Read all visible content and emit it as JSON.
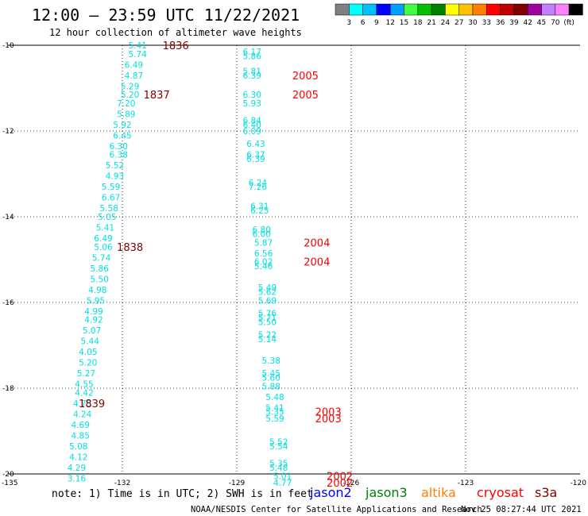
{
  "header": {
    "title": "12:00 – 23:59 UTC 11/22/2021",
    "subtitle": "12 hour collection of altimeter wave heights"
  },
  "legend": {
    "colors": [
      "#808080",
      "#00ffff",
      "#00c0ff",
      "#0000ff",
      "#00a0ff",
      "#40ff40",
      "#00c000",
      "#008000",
      "#ffff00",
      "#ffc000",
      "#ff8000",
      "#ff0000",
      "#c00000",
      "#800000",
      "#a000a0",
      "#c080ff",
      "#ff80ff",
      "#000000"
    ],
    "labels": [
      "3",
      "6",
      "9",
      "12",
      "15",
      "18",
      "21",
      "24",
      "27",
      "30",
      "33",
      "36",
      "39",
      "42",
      "45",
      "70",
      "(ft)"
    ]
  },
  "footer": {
    "note": "note: 1) Time is in UTC; 2) SWH is in feet",
    "credit": "NOAA/NESDIS Center for Satellite Applications and Research",
    "timestamp": "Nov 25 08:27:44 UTC 2021",
    "missions": [
      {
        "name": "jason2",
        "color": "#0000ff"
      },
      {
        "name": "jason3",
        "color": "#008000"
      },
      {
        "name": "altika",
        "color": "#ff8000"
      },
      {
        "name": "cryosat",
        "color": "#ff0000"
      },
      {
        "name": "s3a",
        "color": "#800000"
      }
    ]
  },
  "chart_data": {
    "type": "scatter",
    "title": "12:00 – 23:59 UTC 11/22/2021",
    "subtitle": "12 hour collection of altimeter wave heights",
    "xlim": [
      -135,
      -120
    ],
    "ylim": [
      -20,
      -10
    ],
    "xticks": [
      "-135",
      "-132",
      "-129",
      "-126",
      "-123",
      "-120"
    ],
    "yticks": [
      "-10",
      "-12",
      "-14",
      "-16",
      "-18",
      "-20"
    ],
    "grid": true,
    "series": [
      {
        "name": "s3a",
        "color": "#00e0e0",
        "points": [
          {
            "x": -131.6,
            "y": -10.0,
            "label": "5.41"
          },
          {
            "x": -131.6,
            "y": -10.2,
            "label": "5.74"
          },
          {
            "x": -131.7,
            "y": -10.45,
            "label": "6.49"
          },
          {
            "x": -131.7,
            "y": -10.7,
            "label": "4.87"
          },
          {
            "x": -131.8,
            "y": -10.95,
            "label": "5.29"
          },
          {
            "x": -131.8,
            "y": -11.15,
            "label": "5.20"
          },
          {
            "x": -131.9,
            "y": -11.35,
            "label": "7.20"
          },
          {
            "x": -131.9,
            "y": -11.6,
            "label": "5.89"
          },
          {
            "x": -132.0,
            "y": -11.85,
            "label": "5.92"
          },
          {
            "x": -132.0,
            "y": -12.1,
            "label": "6.45"
          },
          {
            "x": -132.1,
            "y": -12.35,
            "label": "6.30"
          },
          {
            "x": -132.1,
            "y": -12.55,
            "label": "6.38"
          },
          {
            "x": -132.2,
            "y": -12.8,
            "label": "5.52"
          },
          {
            "x": -132.2,
            "y": -13.05,
            "label": "4.93"
          },
          {
            "x": -132.3,
            "y": -13.3,
            "label": "5.59"
          },
          {
            "x": -132.3,
            "y": -13.55,
            "label": "6.67"
          },
          {
            "x": -132.35,
            "y": -13.8,
            "label": "5.58"
          },
          {
            "x": -132.4,
            "y": -14.0,
            "label": "5.05"
          },
          {
            "x": -132.45,
            "y": -14.25,
            "label": "5.41"
          },
          {
            "x": -132.5,
            "y": -14.5,
            "label": "6.49"
          },
          {
            "x": -132.5,
            "y": -14.7,
            "label": "5.06"
          },
          {
            "x": -132.55,
            "y": -14.95,
            "label": "5.74"
          },
          {
            "x": -132.6,
            "y": -15.2,
            "label": "5.86"
          },
          {
            "x": -132.6,
            "y": -15.45,
            "label": "5.50"
          },
          {
            "x": -132.65,
            "y": -15.7,
            "label": "4.98"
          },
          {
            "x": -132.7,
            "y": -15.95,
            "label": "5.95"
          },
          {
            "x": -132.75,
            "y": -16.2,
            "label": "4.99"
          },
          {
            "x": -132.75,
            "y": -16.4,
            "label": "4.92"
          },
          {
            "x": -132.8,
            "y": -16.65,
            "label": "5.07"
          },
          {
            "x": -132.85,
            "y": -16.9,
            "label": "5.44"
          },
          {
            "x": -132.9,
            "y": -17.15,
            "label": "4.05"
          },
          {
            "x": -132.9,
            "y": -17.4,
            "label": "5.20"
          },
          {
            "x": -132.95,
            "y": -17.65,
            "label": "5.27"
          },
          {
            "x": -133.0,
            "y": -17.9,
            "label": "4.55"
          },
          {
            "x": -133.0,
            "y": -18.1,
            "label": "4.42"
          },
          {
            "x": -133.05,
            "y": -18.35,
            "label": "4.75"
          },
          {
            "x": -133.05,
            "y": -18.6,
            "label": "4.24"
          },
          {
            "x": -133.1,
            "y": -18.85,
            "label": "4.69"
          },
          {
            "x": -133.1,
            "y": -19.1,
            "label": "4.85"
          },
          {
            "x": -133.15,
            "y": -19.35,
            "label": "5.08"
          },
          {
            "x": -133.15,
            "y": -19.6,
            "label": "4.12"
          },
          {
            "x": -133.2,
            "y": -19.85,
            "label": "4.29"
          },
          {
            "x": -133.2,
            "y": -20.1,
            "label": "3.16"
          }
        ]
      },
      {
        "name": "cryosat",
        "color": "#00e0e0",
        "points": [
          {
            "x": -128.6,
            "y": -10.15,
            "label": "6.17"
          },
          {
            "x": -128.6,
            "y": -10.25,
            "label": "5.86"
          },
          {
            "x": -128.6,
            "y": -10.6,
            "label": "5.81"
          },
          {
            "x": -128.6,
            "y": -10.7,
            "label": "6.39"
          },
          {
            "x": -128.6,
            "y": -11.15,
            "label": "6.30"
          },
          {
            "x": -128.6,
            "y": -11.35,
            "label": "5.93"
          },
          {
            "x": -128.6,
            "y": -11.75,
            "label": "6.84"
          },
          {
            "x": -128.6,
            "y": -11.85,
            "label": "6.40"
          },
          {
            "x": -128.6,
            "y": -12.0,
            "label": "6.09"
          },
          {
            "x": -128.5,
            "y": -12.3,
            "label": "6.43"
          },
          {
            "x": -128.5,
            "y": -12.55,
            "label": "6.37"
          },
          {
            "x": -128.5,
            "y": -12.65,
            "label": "6.39"
          },
          {
            "x": -128.45,
            "y": -13.2,
            "label": "6.24"
          },
          {
            "x": -128.45,
            "y": -13.3,
            "label": "7.26"
          },
          {
            "x": -128.4,
            "y": -13.75,
            "label": "6.31"
          },
          {
            "x": -128.4,
            "y": -13.85,
            "label": "6.25"
          },
          {
            "x": -128.35,
            "y": -14.3,
            "label": "6.80"
          },
          {
            "x": -128.35,
            "y": -14.4,
            "label": "6.00"
          },
          {
            "x": -128.3,
            "y": -14.6,
            "label": "5.87"
          },
          {
            "x": -128.3,
            "y": -14.85,
            "label": "6.56"
          },
          {
            "x": -128.3,
            "y": -15.05,
            "label": "6.02"
          },
          {
            "x": -128.3,
            "y": -15.15,
            "label": "5.46"
          },
          {
            "x": -128.2,
            "y": -15.65,
            "label": "5.49"
          },
          {
            "x": -128.2,
            "y": -15.75,
            "label": "5.62"
          },
          {
            "x": -128.2,
            "y": -15.95,
            "label": "5.69"
          },
          {
            "x": -128.2,
            "y": -16.25,
            "label": "5.76"
          },
          {
            "x": -128.2,
            "y": -16.35,
            "label": "5.71"
          },
          {
            "x": -128.2,
            "y": -16.45,
            "label": "5.50"
          },
          {
            "x": -128.2,
            "y": -16.75,
            "label": "5.22"
          },
          {
            "x": -128.2,
            "y": -16.85,
            "label": "5.14"
          },
          {
            "x": -128.1,
            "y": -17.35,
            "label": "5.38"
          },
          {
            "x": -128.1,
            "y": -17.65,
            "label": "5.45"
          },
          {
            "x": -128.1,
            "y": -17.75,
            "label": "5.60"
          },
          {
            "x": -128.1,
            "y": -17.95,
            "label": "5.88"
          },
          {
            "x": -128.0,
            "y": -18.2,
            "label": "5.48"
          },
          {
            "x": -128.0,
            "y": -18.45,
            "label": "5.41"
          },
          {
            "x": -128.0,
            "y": -18.55,
            "label": "5.35"
          },
          {
            "x": -128.0,
            "y": -18.7,
            "label": "5.59"
          },
          {
            "x": -127.9,
            "y": -19.25,
            "label": "5.52"
          },
          {
            "x": -127.9,
            "y": -19.35,
            "label": "5.54"
          },
          {
            "x": -127.9,
            "y": -19.75,
            "label": "5.35"
          },
          {
            "x": -127.9,
            "y": -19.85,
            "label": "5.48"
          },
          {
            "x": -127.8,
            "y": -20.05,
            "label": "5.01"
          },
          {
            "x": -127.8,
            "y": -20.2,
            "label": "4.77"
          }
        ]
      }
    ],
    "annotations": [
      {
        "x": -130.6,
        "y": -10.0,
        "text": "1836",
        "color": "#800000"
      },
      {
        "x": -131.1,
        "y": -11.15,
        "text": "1837",
        "color": "#800000"
      },
      {
        "x": -131.8,
        "y": -14.7,
        "text": "1838",
        "color": "#800000"
      },
      {
        "x": -132.8,
        "y": -18.35,
        "text": "1839",
        "color": "#800000"
      },
      {
        "x": -127.2,
        "y": -10.7,
        "text": "2005",
        "color": "#ff0000"
      },
      {
        "x": -127.2,
        "y": -11.15,
        "text": "2005",
        "color": "#ff0000"
      },
      {
        "x": -126.9,
        "y": -14.6,
        "text": "2004",
        "color": "#ff0000"
      },
      {
        "x": -126.9,
        "y": -15.05,
        "text": "2004",
        "color": "#ff0000"
      },
      {
        "x": -126.6,
        "y": -18.55,
        "text": "2003",
        "color": "#ff0000"
      },
      {
        "x": -126.6,
        "y": -18.7,
        "text": "2003",
        "color": "#ff0000"
      },
      {
        "x": -126.3,
        "y": -20.05,
        "text": "2002",
        "color": "#ff0000"
      },
      {
        "x": -126.3,
        "y": -20.2,
        "text": "2002",
        "color": "#ff0000"
      }
    ]
  }
}
